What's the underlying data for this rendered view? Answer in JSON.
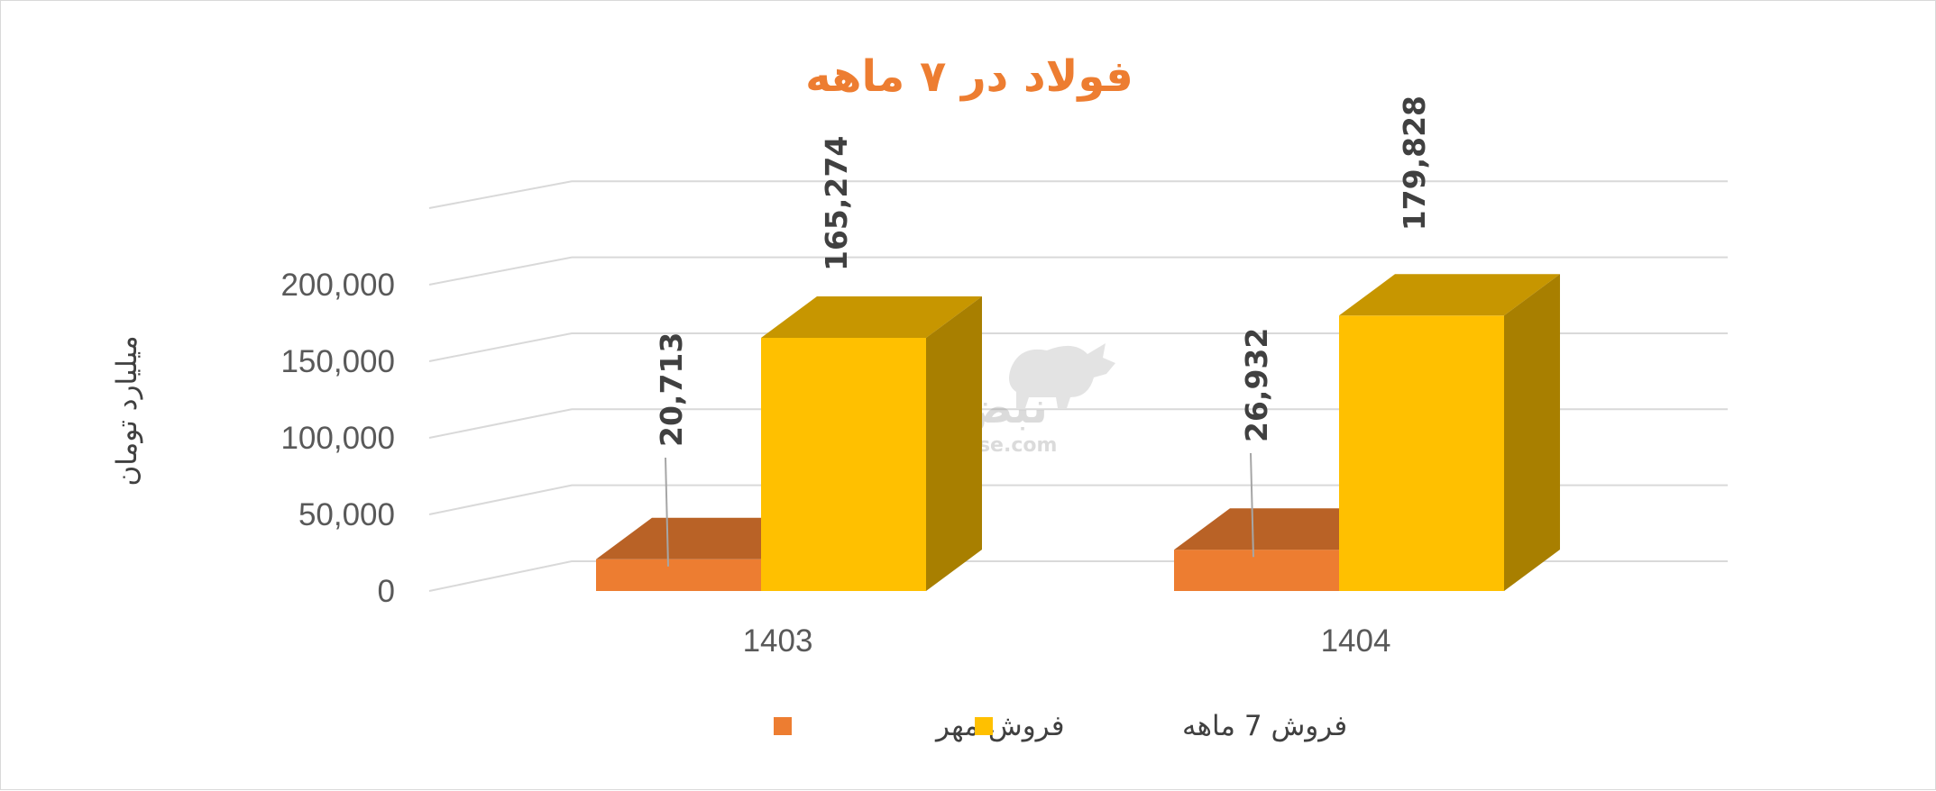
{
  "chart_data": {
    "type": "bar",
    "title": "فولاد در ۷ ماهه",
    "ylabel": "میلیارد تومان",
    "categories": [
      "1403",
      "1404"
    ],
    "series": [
      {
        "name": "فروش مهر",
        "color": "#ED7D31",
        "values": [
          20713,
          26932
        ],
        "labels": [
          "20,713",
          "26,932"
        ]
      },
      {
        "name": "فروش 7  ماهه",
        "color": "#FFC000",
        "values": [
          165274,
          179828
        ],
        "labels": [
          "165,274",
          "179,828"
        ]
      }
    ],
    "ylim": [
      0,
      250000
    ],
    "yticks": [
      "0",
      "50,000",
      "100,000",
      "150,000",
      "200,000"
    ],
    "grid": true,
    "legend_position": "bottom",
    "style": "3d-clustered-column",
    "title_color": "#ED7D31"
  },
  "watermark": {
    "brand": "نبض بورس",
    "url": "nabzebourse.com"
  }
}
